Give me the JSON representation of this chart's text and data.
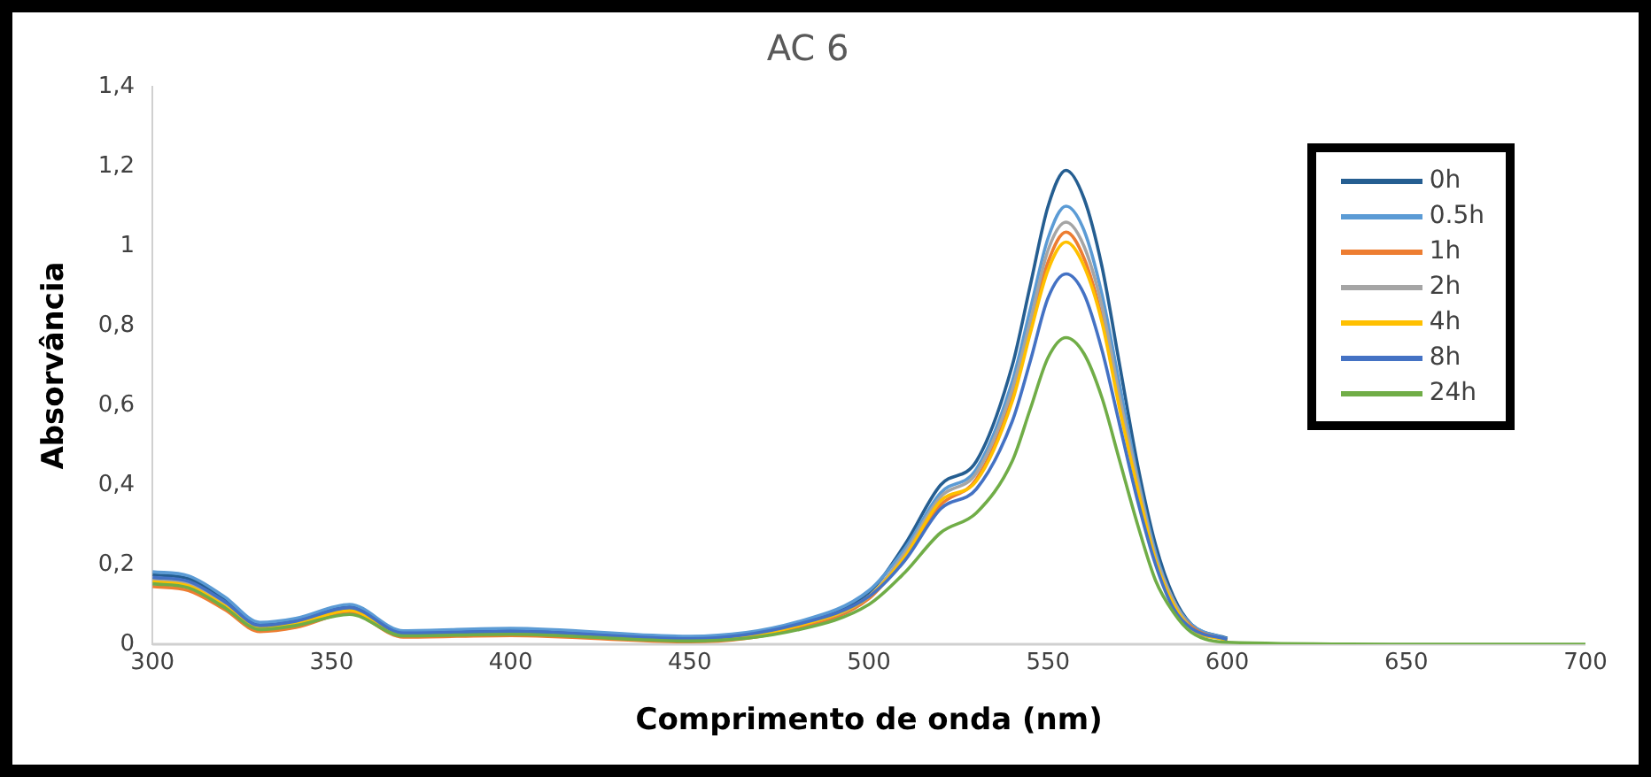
{
  "chart_data": {
    "type": "line",
    "title": "AC 6",
    "xlabel": "Comprimento de onda (nm)",
    "ylabel": "Absorvância",
    "x": [
      300,
      310,
      320,
      330,
      340,
      355,
      370,
      400,
      450,
      480,
      500,
      510,
      520,
      530,
      540,
      545,
      550,
      555,
      560,
      565,
      570,
      575,
      580,
      585,
      590,
      600,
      650,
      700
    ],
    "xlim": [
      300,
      700
    ],
    "xticks": [
      300,
      350,
      400,
      450,
      500,
      550,
      600,
      650,
      700
    ],
    "ylim": [
      0,
      1.4
    ],
    "yticks": [
      0,
      {
        "value": 0.2,
        "label": "0,2"
      },
      {
        "value": 0.4,
        "label": "0,4"
      },
      {
        "value": 0.6,
        "label": "0,6"
      },
      {
        "value": 0.8,
        "label": "0,8"
      },
      1,
      {
        "value": 1.2,
        "label": "1,2"
      },
      {
        "value": 1.4,
        "label": "1,4"
      }
    ],
    "grid": false,
    "legend": "top right",
    "marker": "none",
    "line_style": "solid",
    "series": [
      {
        "name": "0h",
        "color": "#255e91",
        "values": [
          0.175,
          0.165,
          0.115,
          0.05,
          0.06,
          0.095,
          0.03,
          0.035,
          0.016,
          0.052,
          0.13,
          0.25,
          0.4,
          0.46,
          0.7,
          0.9,
          1.1,
          1.19,
          1.12,
          0.95,
          0.7,
          0.45,
          0.25,
          0.12,
          0.05,
          0.015,
          null,
          null
        ]
      },
      {
        "name": "0.5h",
        "color": "#5b9bd5",
        "values": [
          0.182,
          0.172,
          0.12,
          0.055,
          0.065,
          0.1,
          0.034,
          0.04,
          0.02,
          0.056,
          0.135,
          0.24,
          0.38,
          0.44,
          0.66,
          0.84,
          1.02,
          1.1,
          1.04,
          0.88,
          0.65,
          0.42,
          0.23,
          0.11,
          0.05,
          0.013,
          null,
          null
        ]
      },
      {
        "name": "1h",
        "color": "#ed7d31",
        "values": [
          0.145,
          0.135,
          0.088,
          0.032,
          0.042,
          0.078,
          0.018,
          0.022,
          0.006,
          0.04,
          0.115,
          0.22,
          0.35,
          0.415,
          0.62,
          0.795,
          0.96,
          1.035,
          0.97,
          0.82,
          0.6,
          0.4,
          0.215,
          0.105,
          0.045,
          0.01,
          null,
          null
        ]
      },
      {
        "name": "2h",
        "color": "#a5a5a5",
        "values": [
          0.162,
          0.152,
          0.102,
          0.044,
          0.054,
          0.088,
          0.026,
          0.03,
          0.012,
          0.048,
          0.12,
          0.23,
          0.37,
          0.43,
          0.64,
          0.81,
          0.99,
          1.06,
          1,
          0.85,
          0.62,
          0.41,
          0.22,
          0.11,
          0.04,
          0.011,
          null,
          null
        ]
      },
      {
        "name": "4h",
        "color": "#ffc000",
        "values": [
          0.157,
          0.147,
          0.097,
          0.041,
          0.051,
          0.085,
          0.024,
          0.028,
          0.01,
          0.046,
          0.12,
          0.22,
          0.36,
          0.41,
          0.61,
          0.78,
          0.94,
          1.01,
          0.95,
          0.81,
          0.59,
          0.39,
          0.21,
          0.1,
          0.04,
          0.01,
          null,
          null
        ]
      },
      {
        "name": "8h",
        "color": "#4472c4",
        "values": [
          0.168,
          0.158,
          0.108,
          0.047,
          0.058,
          0.092,
          0.028,
          0.032,
          0.014,
          0.05,
          0.12,
          0.21,
          0.34,
          0.39,
          0.56,
          0.71,
          0.87,
          0.93,
          0.88,
          0.74,
          0.55,
          0.36,
          0.2,
          0.09,
          0.04,
          0.012,
          null,
          null
        ]
      },
      {
        "name": "24h",
        "color": "#70ad47",
        "values": [
          0.152,
          0.142,
          0.093,
          0.037,
          0.047,
          0.075,
          0.021,
          0.025,
          0.008,
          0.036,
          0.1,
          0.18,
          0.28,
          0.33,
          0.46,
          0.59,
          0.72,
          0.77,
          0.73,
          0.62,
          0.46,
          0.3,
          0.16,
          0.08,
          0.03,
          0.005,
          0,
          0
        ]
      }
    ]
  }
}
